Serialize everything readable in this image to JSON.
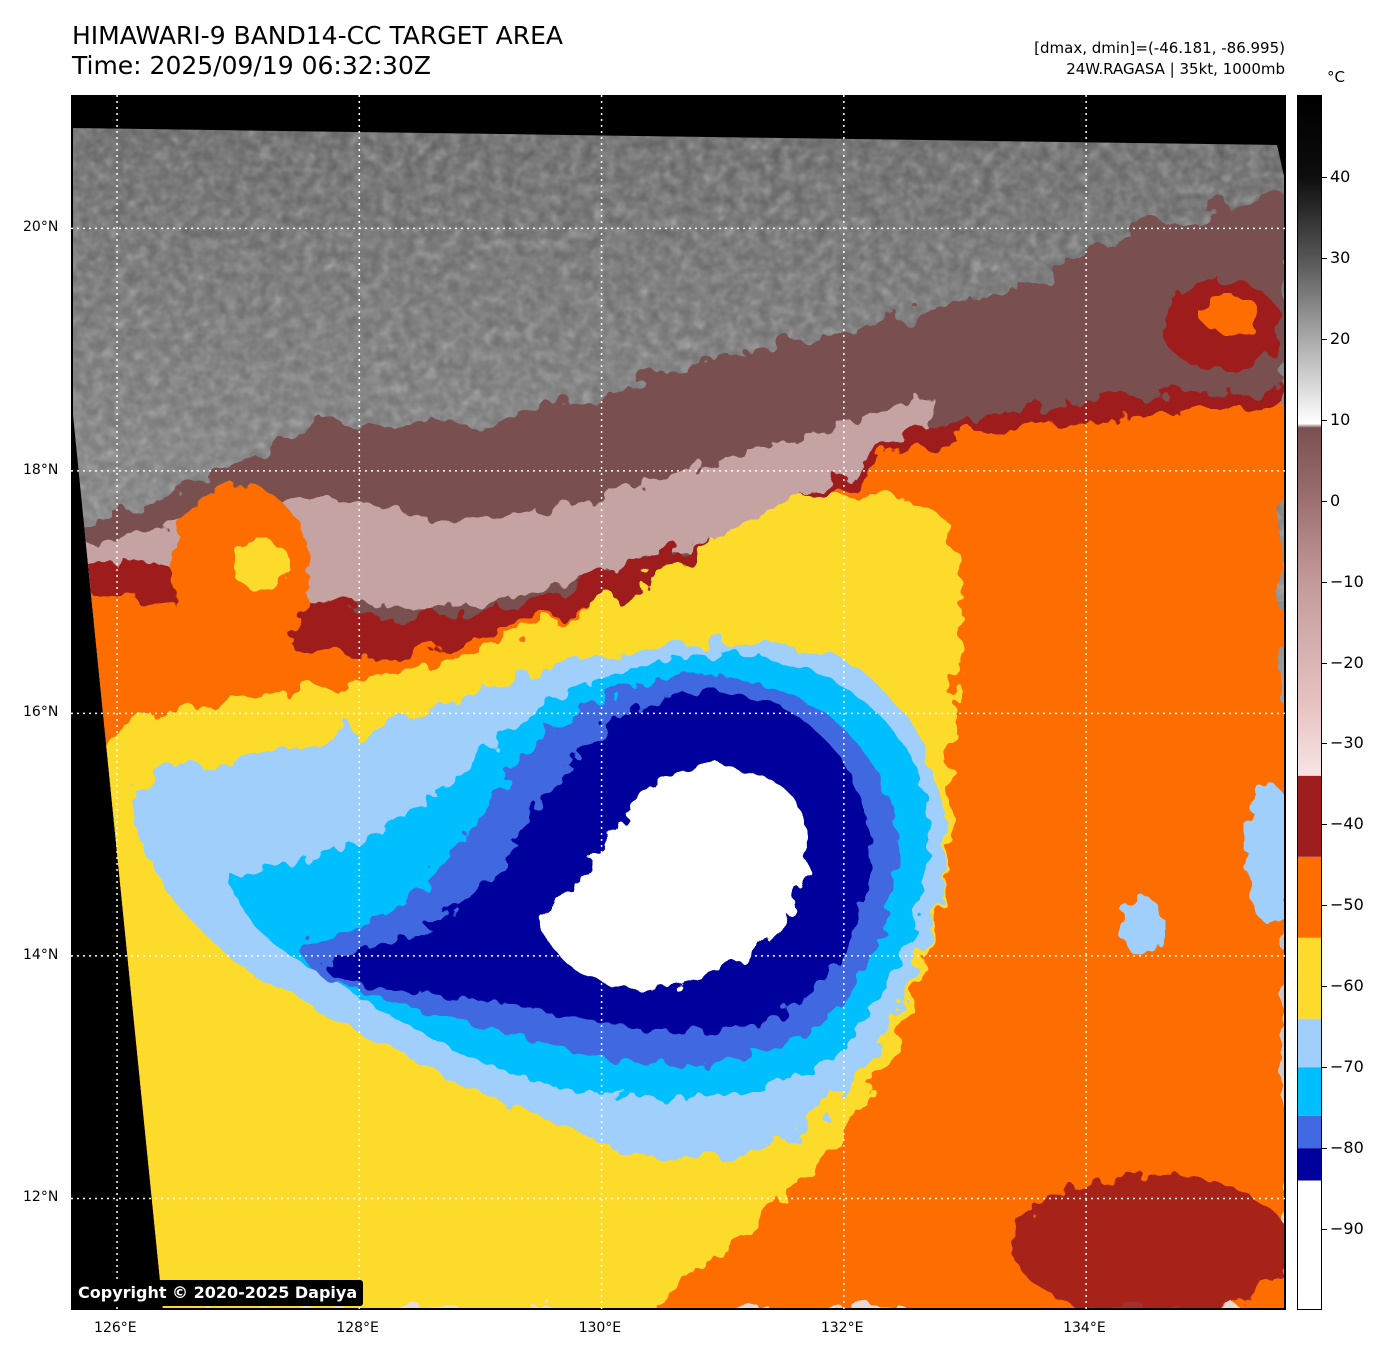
{
  "header": {
    "title_line1": "HIMAWARI-9 BAND14-CC TARGET AREA",
    "title_line2": "Time: 2025/09/19 06:32:30Z",
    "info_line1": "[dmax, dmin]=(-46.181, -86.995)",
    "info_line2": "24W.RAGASA | 35kt, 1000mb"
  },
  "colorbar": {
    "unit": "°C",
    "ticks": [
      "40",
      "30",
      "20",
      "10",
      "0",
      "−10",
      "−20",
      "−30",
      "−40",
      "−50",
      "−60",
      "−70",
      "−80",
      "−90"
    ],
    "tick_values": [
      40,
      30,
      20,
      10,
      0,
      -10,
      -20,
      -30,
      -40,
      -50,
      -60,
      -70,
      -80,
      -90
    ],
    "range": [
      -100,
      50
    ],
    "bands": [
      {
        "from": -100,
        "to": -84,
        "color": "#ffffff"
      },
      {
        "from": -84,
        "to": -80,
        "color": "#00009c"
      },
      {
        "from": -80,
        "to": -76,
        "color": "#4169e1"
      },
      {
        "from": -76,
        "to": -70,
        "color": "#00bfff"
      },
      {
        "from": -70,
        "to": -64,
        "color": "#9fcffa"
      },
      {
        "from": -64,
        "to": -54,
        "color": "#fcdb2c"
      },
      {
        "from": -54,
        "to": -44,
        "color": "#fd6d00"
      },
      {
        "from": -44,
        "to": -34,
        "color": "#9e1e1e"
      }
    ],
    "gradient_stops": [
      {
        "value": -34,
        "color": "#f8e4e4"
      },
      {
        "value": -25,
        "color": "#e6c2c2"
      },
      {
        "value": -10,
        "color": "#c39a9a"
      },
      {
        "value": 0,
        "color": "#9c7070"
      },
      {
        "value": 9,
        "color": "#7a5050"
      },
      {
        "value": 9.5,
        "color": "#ffffff"
      },
      {
        "value": 20,
        "color": "#a9a9a9"
      },
      {
        "value": 30,
        "color": "#555555"
      },
      {
        "value": 40,
        "color": "#0d0d0d"
      },
      {
        "value": 50,
        "color": "#000000"
      }
    ]
  },
  "map": {
    "lon_labels": [
      "126°E",
      "128°E",
      "130°E",
      "132°E",
      "134°E"
    ],
    "lon_values": [
      126,
      128,
      130,
      132,
      134
    ],
    "lat_labels": [
      "20°N",
      "18°N",
      "16°N",
      "14°N",
      "12°N"
    ],
    "lat_values": [
      20,
      18,
      16,
      14,
      12
    ],
    "lon_range": [
      125.62,
      135.65
    ],
    "lat_range": [
      11.08,
      21.1
    ],
    "grid_color": "#ffffff",
    "background_color": "#000000",
    "cloud_colors": {
      "cold_core": "#ffffff",
      "deep_blue": "#00009c",
      "royal_blue": "#4169e1",
      "sky_blue": "#00bfff",
      "light_blue": "#9fcffa",
      "yellow": "#fcdb2c",
      "orange": "#fd6d00",
      "dark_red": "#9e1e1e",
      "warm_brown": "#7a5050",
      "clear_grey": "#707070"
    }
  },
  "copyright": "Copyright © 2020-2025 Dapiya"
}
